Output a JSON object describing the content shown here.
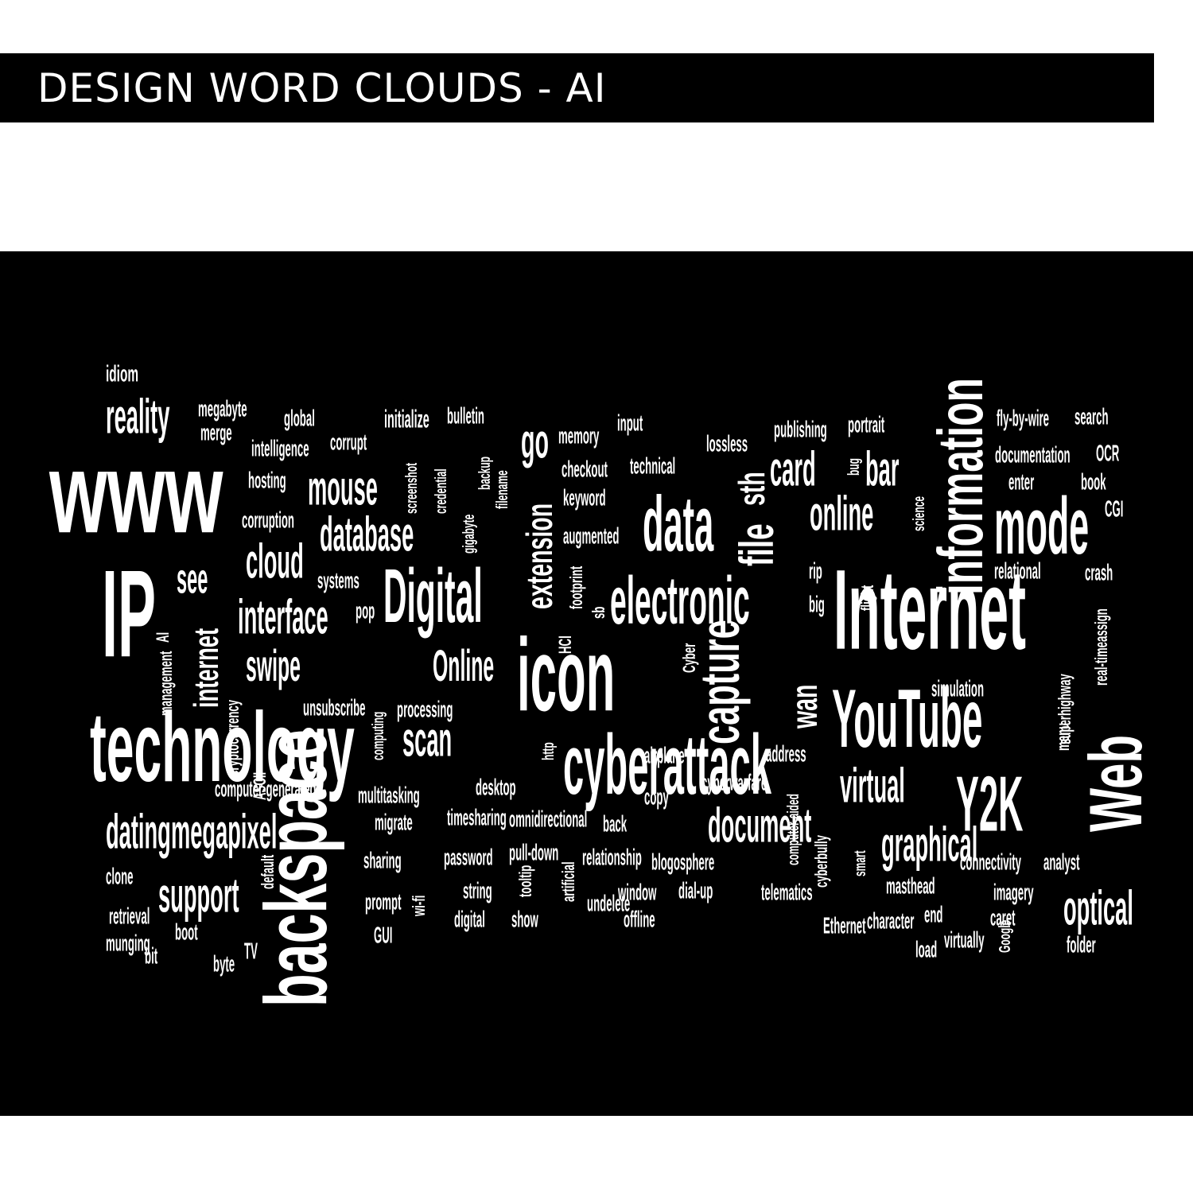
{
  "header": {
    "title": "DESIGN WORD CLOUDS - AI"
  },
  "colors": {
    "background": "#000000",
    "text": "#ffffff",
    "page": "#ffffff"
  },
  "words": [
    "idiom",
    "reality",
    "megabyte",
    "merge",
    "global",
    "intelligence",
    "corrupt",
    "initialize",
    "bulletin",
    "go",
    "memory",
    "input",
    "lossless",
    "publishing",
    "portrait",
    "fly-by-wire",
    "search",
    "www",
    "hosting",
    "mouse",
    "screenshot",
    "credential",
    "backup",
    "gigabyte",
    "filename",
    "checkout",
    "technical",
    "sth",
    "card",
    "bug",
    "bar",
    "documentation",
    "OCR",
    "corruption",
    "database",
    "keyword",
    "extension",
    "data",
    "file",
    "online",
    "information",
    "science",
    "enter",
    "book",
    "mode",
    "CGI",
    "cloud",
    "augmented",
    "IP",
    "see",
    "systems",
    "Digital",
    "footprint",
    "electronic",
    "rip",
    "flight",
    "relational",
    "crash",
    "interface",
    "pop",
    "sb",
    "big",
    "Internet",
    "real-timeassign",
    "AI",
    "internet",
    "HCI",
    "superhighway",
    "swipe",
    "Online",
    "icon",
    "Cyber",
    "capture",
    "wan",
    "simulation",
    "management",
    "unsubscribe",
    "processing",
    "YouTube",
    "menu",
    "Web",
    "technology",
    "backspace",
    "cryptocurrency",
    "ASCII",
    "computing",
    "scan",
    "http",
    "cyberattack",
    "airplane",
    "address",
    "virtual",
    "Y2K",
    "computer-generated",
    "cyberwarfare",
    "multitasking",
    "desktop",
    "copy",
    "dating",
    "megapixel",
    "migrate",
    "timesharing",
    "omnidirectional",
    "back",
    "document",
    "computer-aided",
    "cyberbully",
    "smart",
    "graphical",
    "password",
    "pull-down",
    "sharing",
    "relationship",
    "blogosphere",
    "connectivity",
    "analyst",
    "clone",
    "default",
    "support",
    "string",
    "tooltip",
    "prompt",
    "artificial",
    "window",
    "dial-up",
    "telematics",
    "masthead",
    "imagery",
    "wi-fi",
    "undelete",
    "end",
    "optical",
    "retrieval",
    "digital",
    "show",
    "offline",
    "Ethernet",
    "character",
    "caret",
    "munging",
    "boot",
    "GUI",
    "Google",
    "virtually",
    "folder",
    "bit",
    "byte",
    "TV",
    "load"
  ]
}
